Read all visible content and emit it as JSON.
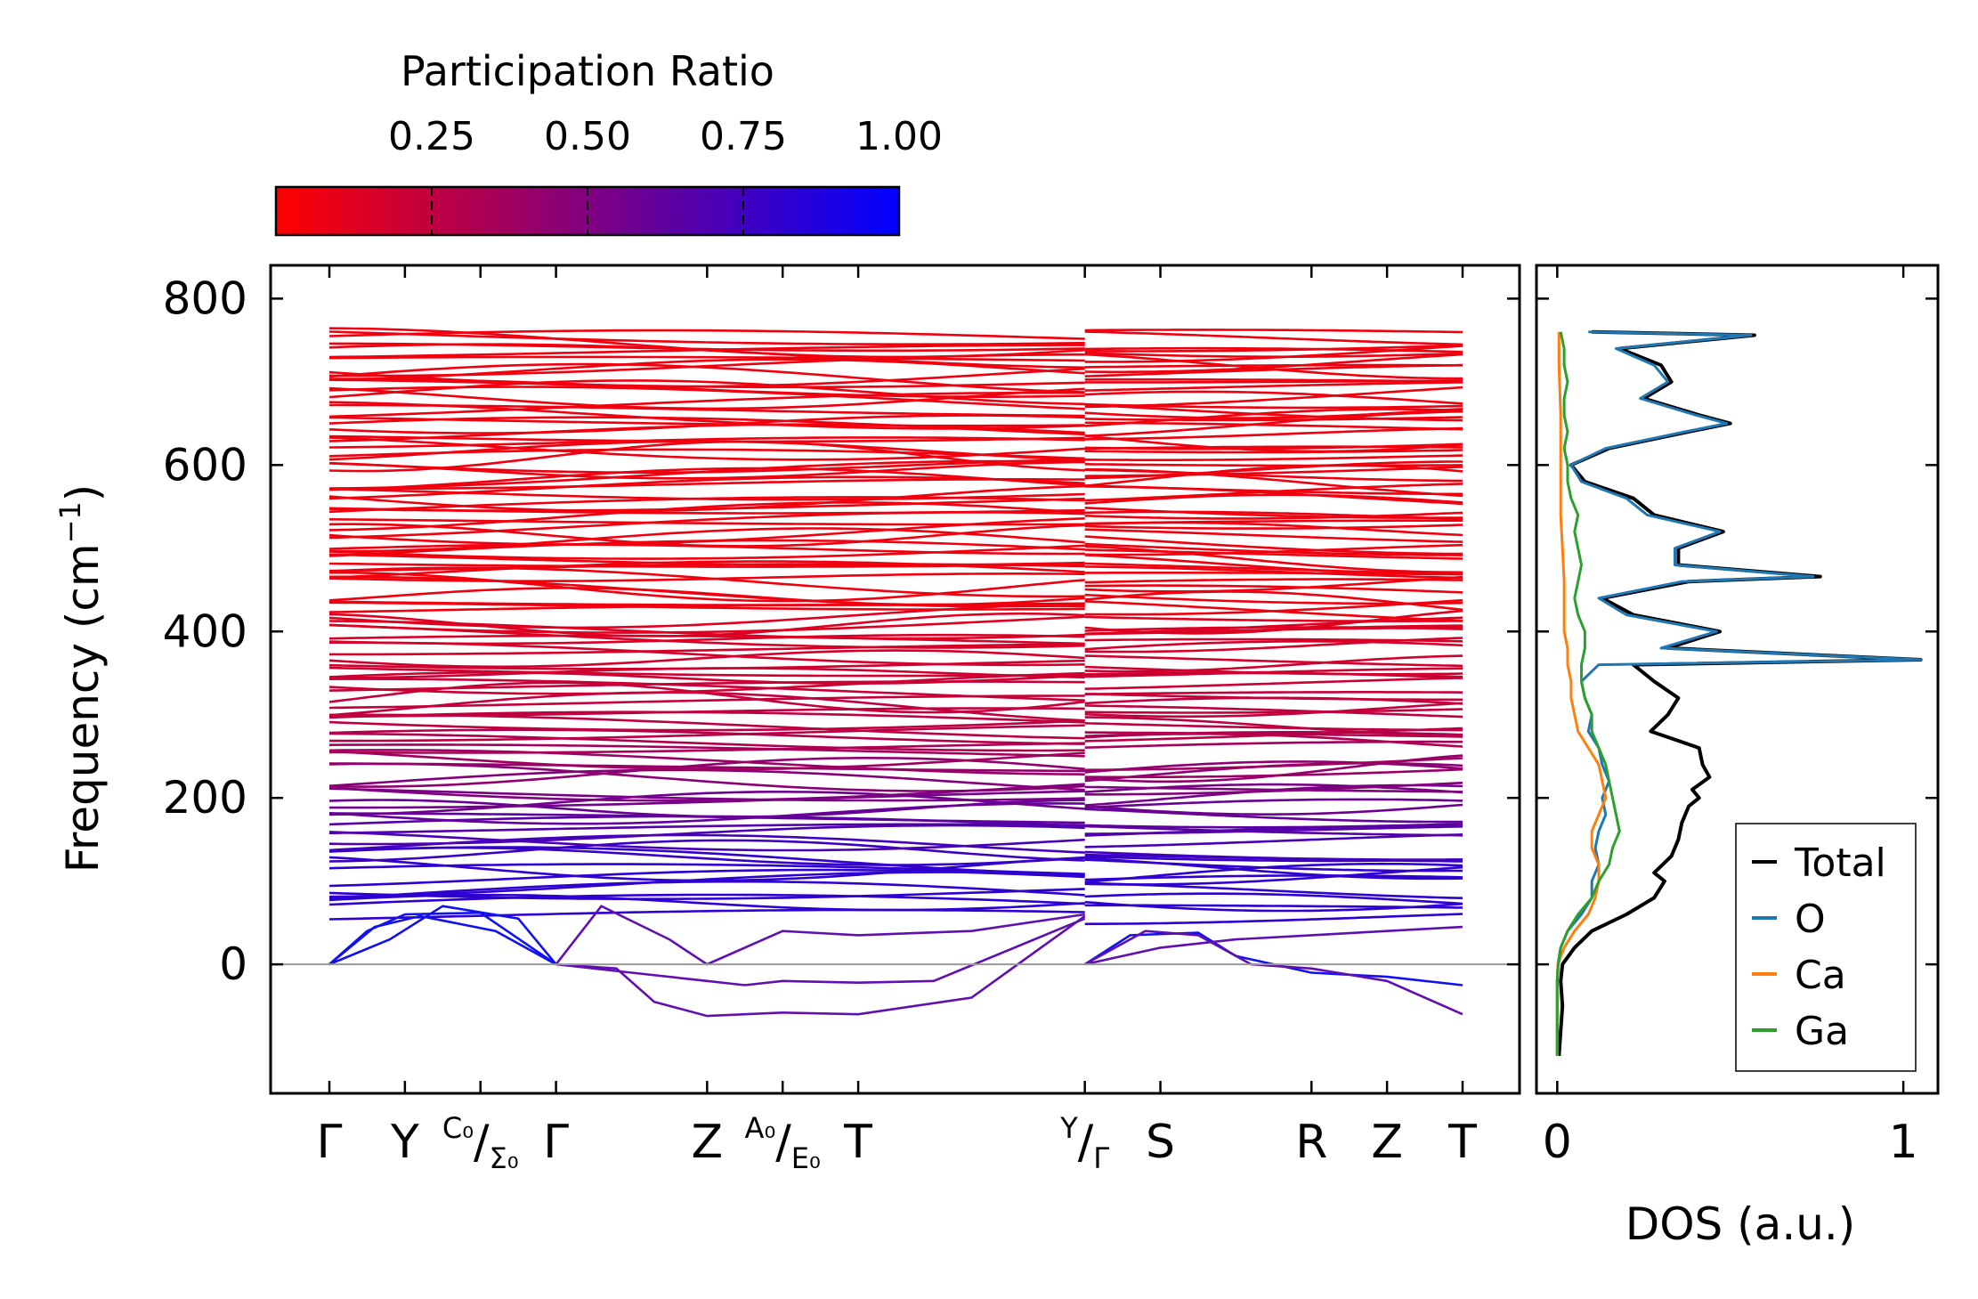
{
  "colorbar": {
    "title": "Participation Ratio",
    "range": [
      0.0,
      1.0
    ],
    "tick_values": [
      0.25,
      0.5,
      0.75,
      1.0
    ],
    "tick_labels": [
      "0.25",
      "0.50",
      "0.75",
      "1.00"
    ],
    "color_low": "#ff0000",
    "color_high": "#0000ff"
  },
  "chart_data": [
    {
      "type": "line",
      "name": "phonon-dispersion",
      "ylabel_main": "Frequency (cm",
      "ylabel_sup": "−1",
      "ylabel_close": ")",
      "ylim": [
        -155,
        840
      ],
      "yticks": [
        0,
        200,
        400,
        600,
        800
      ],
      "ytick_labels": [
        "0",
        "200",
        "400",
        "600",
        "800"
      ],
      "zero_line_color": "#999999",
      "path_segments": [
        [
          0,
          10
        ],
        [
          10,
          15
        ]
      ],
      "kpoint_labels": [
        {
          "pos": 0,
          "main": "Γ"
        },
        {
          "pos": 1,
          "main": "Y"
        },
        {
          "pos": 2,
          "pre_sup": "C₀",
          "slash": "/",
          "post_sub": "Σ₀"
        },
        {
          "pos": 3,
          "main": "Γ"
        },
        {
          "pos": 5,
          "main": "Z"
        },
        {
          "pos": 6,
          "pre_sup": "A₀",
          "slash": "/",
          "post_sub": "E₀"
        },
        {
          "pos": 7,
          "main": "T"
        },
        {
          "pos": 10,
          "pre_sup": "Y",
          "slash": "/",
          "post_sub": "Γ"
        },
        {
          "pos": 11,
          "main": "S"
        },
        {
          "pos": 13,
          "main": "R"
        },
        {
          "pos": 14,
          "main": "Z"
        },
        {
          "pos": 15,
          "main": "T"
        }
      ],
      "band_frequency_range_cm1": [
        -62,
        758
      ],
      "band_count_approx": 120
    },
    {
      "type": "line",
      "name": "density-of-states",
      "xlabel": "DOS (a.u.)",
      "xlim": [
        -0.06,
        1.1
      ],
      "xticks": [
        0,
        1
      ],
      "xtick_labels": [
        "0",
        "1"
      ],
      "ylim": [
        -155,
        840
      ],
      "legend_position": "lower-right",
      "series": [
        {
          "name": "Total",
          "color": "#000000",
          "freq": [
            -110,
            -80,
            -50,
            -20,
            0,
            20,
            40,
            60,
            80,
            100,
            110,
            130,
            150,
            170,
            190,
            200,
            210,
            225,
            240,
            260,
            280,
            300,
            320,
            340,
            360,
            366,
            380,
            400,
            420,
            440,
            460,
            466,
            480,
            500,
            520,
            540,
            560,
            580,
            600,
            620,
            640,
            650,
            660,
            680,
            700,
            720,
            740,
            756,
            760
          ],
          "value": [
            0.005,
            0.01,
            0.015,
            0.01,
            0.015,
            0.05,
            0.1,
            0.2,
            0.28,
            0.31,
            0.28,
            0.33,
            0.35,
            0.36,
            0.38,
            0.41,
            0.39,
            0.44,
            0.42,
            0.41,
            0.27,
            0.32,
            0.35,
            0.28,
            0.22,
            1.05,
            0.32,
            0.47,
            0.22,
            0.13,
            0.38,
            0.76,
            0.35,
            0.35,
            0.48,
            0.28,
            0.22,
            0.08,
            0.04,
            0.15,
            0.38,
            0.5,
            0.41,
            0.25,
            0.33,
            0.3,
            0.18,
            0.57,
            0.1
          ]
        },
        {
          "name": "O",
          "color": "#1f77b4",
          "freq": [
            -110,
            -80,
            -50,
            -20,
            0,
            20,
            40,
            60,
            80,
            100,
            120,
            140,
            160,
            180,
            200,
            220,
            240,
            260,
            280,
            300,
            320,
            340,
            360,
            366,
            380,
            400,
            420,
            440,
            460,
            466,
            480,
            500,
            520,
            540,
            560,
            580,
            600,
            620,
            640,
            650,
            660,
            680,
            700,
            720,
            740,
            756,
            760
          ],
          "value": [
            0,
            0,
            0,
            0,
            0.002,
            0.01,
            0.03,
            0.07,
            0.1,
            0.1,
            0.12,
            0.11,
            0.12,
            0.14,
            0.13,
            0.15,
            0.13,
            0.12,
            0.09,
            0.1,
            0.08,
            0.07,
            0.12,
            1.05,
            0.3,
            0.46,
            0.2,
            0.12,
            0.36,
            0.74,
            0.34,
            0.34,
            0.47,
            0.26,
            0.2,
            0.07,
            0.04,
            0.14,
            0.37,
            0.49,
            0.4,
            0.24,
            0.32,
            0.28,
            0.17,
            0.56,
            0.09
          ]
        },
        {
          "name": "Ca",
          "color": "#ff7f0e",
          "freq": [
            -110,
            -80,
            -50,
            -20,
            0,
            20,
            40,
            60,
            80,
            100,
            120,
            140,
            160,
            180,
            200,
            220,
            240,
            260,
            280,
            300,
            320,
            340,
            360,
            380,
            400,
            430,
            460,
            500,
            540,
            600,
            660,
            720,
            760
          ],
          "value": [
            0,
            0,
            0,
            0,
            0.002,
            0.02,
            0.05,
            0.09,
            0.11,
            0.12,
            0.12,
            0.1,
            0.1,
            0.12,
            0.14,
            0.13,
            0.12,
            0.09,
            0.06,
            0.05,
            0.04,
            0.04,
            0.03,
            0.03,
            0.02,
            0.02,
            0.02,
            0.015,
            0.01,
            0.01,
            0.01,
            0.005,
            0.005
          ]
        },
        {
          "name": "Ga",
          "color": "#2ca02c",
          "freq": [
            -110,
            -80,
            -50,
            -20,
            0,
            20,
            40,
            60,
            80,
            100,
            120,
            140,
            160,
            180,
            200,
            220,
            240,
            260,
            280,
            300,
            320,
            340,
            360,
            380,
            400,
            420,
            440,
            460,
            480,
            500,
            520,
            540,
            560,
            580,
            600,
            620,
            640,
            660,
            680,
            700,
            720,
            740,
            760
          ],
          "value": [
            0,
            0,
            0,
            0,
            0.003,
            0.01,
            0.03,
            0.06,
            0.1,
            0.12,
            0.15,
            0.16,
            0.18,
            0.17,
            0.16,
            0.15,
            0.14,
            0.12,
            0.1,
            0.1,
            0.08,
            0.07,
            0.07,
            0.08,
            0.08,
            0.06,
            0.05,
            0.06,
            0.07,
            0.06,
            0.05,
            0.06,
            0.04,
            0.03,
            0.03,
            0.02,
            0.03,
            0.02,
            0.02,
            0.03,
            0.02,
            0.02,
            0.01
          ]
        }
      ]
    }
  ]
}
